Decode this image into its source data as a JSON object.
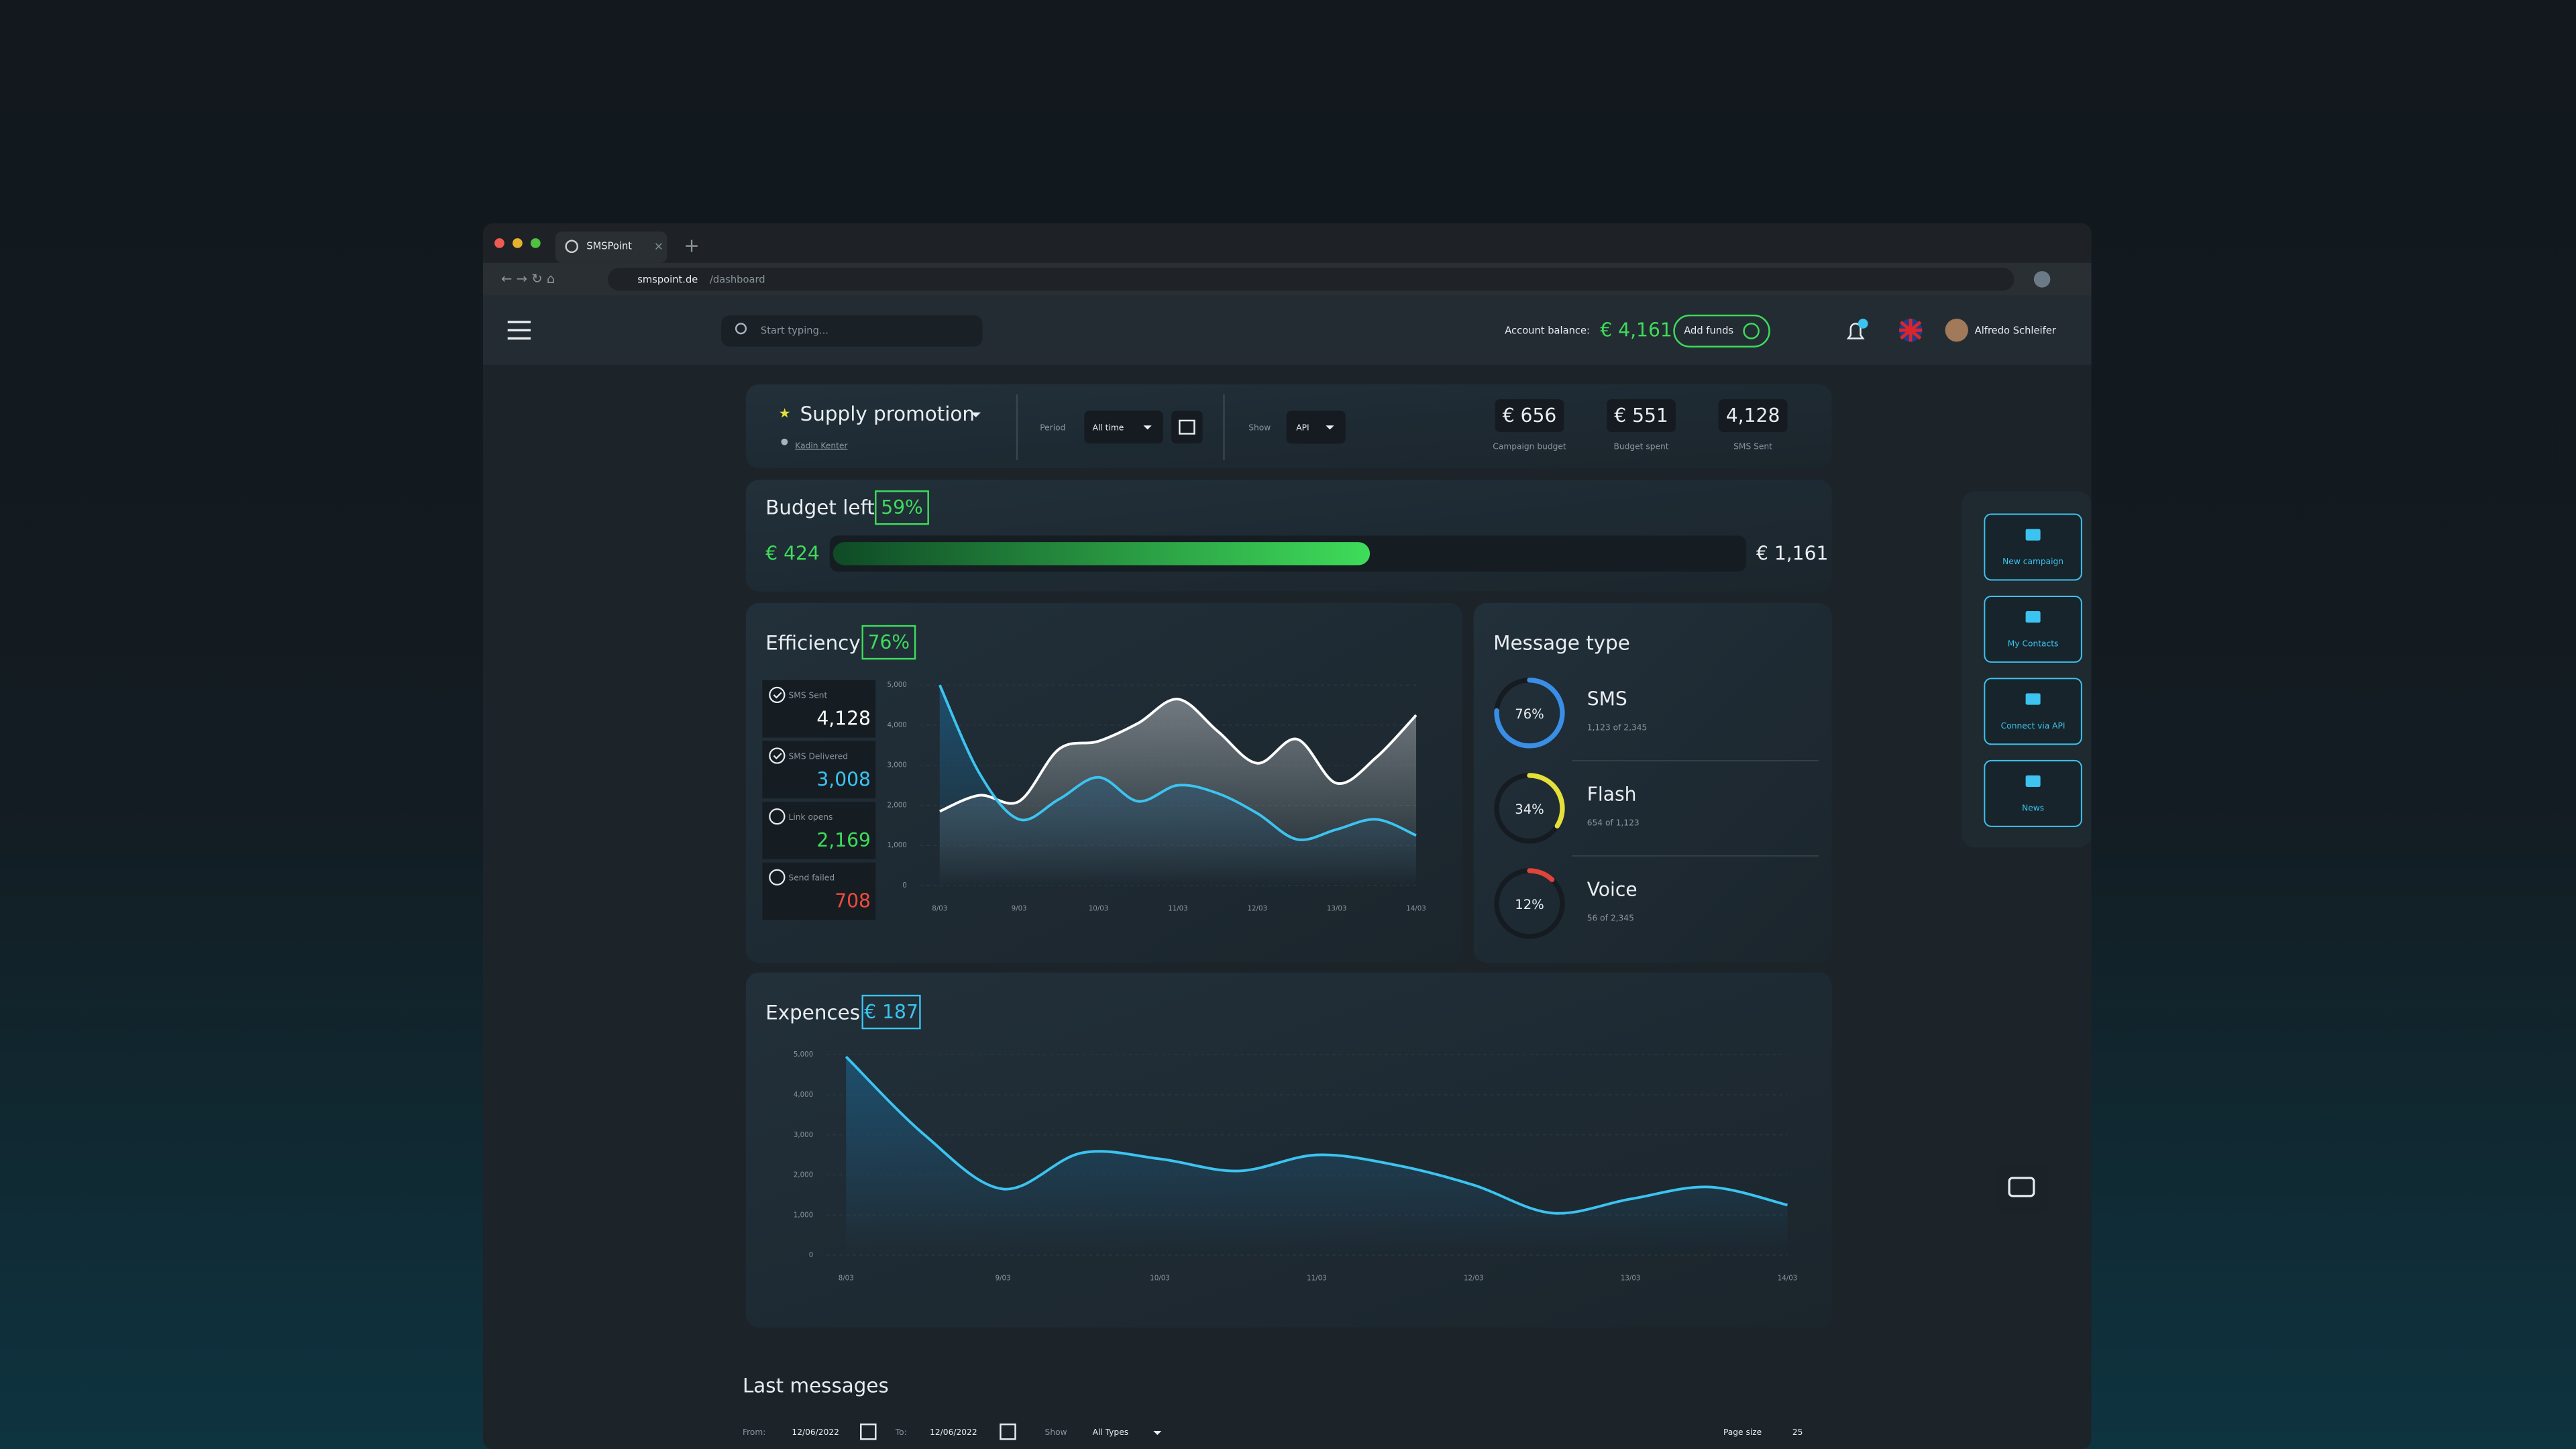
{
  "browser": {
    "tab_title": "SMSPoint",
    "url_host": "smspoint.de",
    "url_path": "/dashboard"
  },
  "header": {
    "search_placeholder": "Start typing...",
    "balance_label": "Account balance:",
    "balance": "€ 4,161",
    "add_funds": "Add funds",
    "user_name": "Alfredo Schleifer"
  },
  "campaign": {
    "name": "Supply promotion",
    "owner": "Kadin Kenter",
    "period_label": "Period",
    "period": "All time",
    "show_label": "Show",
    "show": "API",
    "stats": [
      {
        "value": "€ 656",
        "label": "Campaign budget"
      },
      {
        "value": "€ 551",
        "label": "Budget spent"
      },
      {
        "value": "4,128",
        "label": "SMS Sent"
      }
    ]
  },
  "budget": {
    "title": "Budget left",
    "percent": {
      "value": 59,
      "label": "59%"
    },
    "left": "€ 424",
    "total": "€ 1,161"
  },
  "efficiency": {
    "title": "Efficiency",
    "score": "76%",
    "metrics": [
      {
        "label": "SMS Sent",
        "value": "4,128",
        "color": "#ffffff",
        "checked": true
      },
      {
        "label": "SMS Delivered",
        "value": "3,008",
        "color": "#3cc3ef",
        "checked": true
      },
      {
        "label": "Link opens",
        "value": "2,169",
        "color": "#3ddc5a",
        "checked": false
      },
      {
        "label": "Send failed",
        "value": "708",
        "color": "#ef4b3c",
        "checked": false
      }
    ],
    "chart": {
      "type": "area",
      "x": [
        "8/03",
        null,
        "9/03",
        null,
        "10/03",
        null,
        "11/03",
        null,
        "12/03",
        null,
        "13/03",
        null,
        "14/03"
      ],
      "series": [
        {
          "color": "#ffffff",
          "values": [
            1850,
            2250,
            2100,
            3400,
            3600,
            4050,
            4650,
            3850,
            3050,
            3650,
            2550,
            3200,
            4250
          ]
        },
        {
          "color": "#3cc3ef",
          "values": [
            5000,
            2800,
            1650,
            2150,
            2700,
            2100,
            2500,
            2300,
            1800,
            1150,
            1400,
            1650,
            1250
          ]
        }
      ],
      "ylim": [
        0,
        5000
      ],
      "yticks": [
        0,
        {
          "value": 1000,
          "label": "1,000"
        },
        {
          "value": 2000,
          "label": "2,000"
        },
        {
          "value": 3000,
          "label": "3,000"
        },
        {
          "value": 4000,
          "label": "4,000"
        },
        {
          "value": 5000,
          "label": "5,000"
        }
      ],
      "grid": true
    }
  },
  "message_type": {
    "title": "Message type",
    "items": [
      {
        "name": "SMS",
        "percent": {
          "value": 76,
          "label": "76%"
        },
        "detail": "1,123 of 2,345",
        "color": "#3a8ee6"
      },
      {
        "name": "Flash",
        "percent": {
          "value": 34,
          "label": "34%"
        },
        "detail": "654 of 1,123",
        "color": "#e4e03a"
      },
      {
        "name": "Voice",
        "percent": {
          "value": 12,
          "label": "12%"
        },
        "detail": "56 of 2,345",
        "color": "#e0443a"
      }
    ]
  },
  "expences": {
    "title": "Expences",
    "total": "€ 187",
    "chart": {
      "type": "area",
      "x": [
        "8/03",
        null,
        "9/03",
        null,
        "10/03",
        null,
        "11/03",
        null,
        "12/03",
        null,
        "13/03",
        null,
        "14/03"
      ],
      "series": [
        {
          "color": "#3cc3ef",
          "values": [
            4950,
            3000,
            1650,
            2550,
            2400,
            2100,
            2500,
            2250,
            1750,
            1050,
            1400,
            1700,
            1250
          ]
        }
      ],
      "ylim": [
        0,
        5000
      ],
      "yticks": [
        0,
        {
          "value": 1000,
          "label": "1,000"
        },
        {
          "value": 2000,
          "label": "2,000"
        },
        {
          "value": 3000,
          "label": "3,000"
        },
        {
          "value": 4000,
          "label": "4,000"
        },
        {
          "value": 5000,
          "label": "5,000"
        }
      ],
      "grid": true
    }
  },
  "last_messages": {
    "title": "Last messages",
    "from_label": "From:",
    "from": "12/06/2022",
    "to_label": "To:",
    "to": "12/06/2022",
    "show_label": "Show",
    "show": "All Types",
    "page_size_label": "Page size",
    "page_size": "25"
  },
  "side_menu": [
    "New campaign",
    "My Contacts",
    "Connect via API",
    "News"
  ]
}
